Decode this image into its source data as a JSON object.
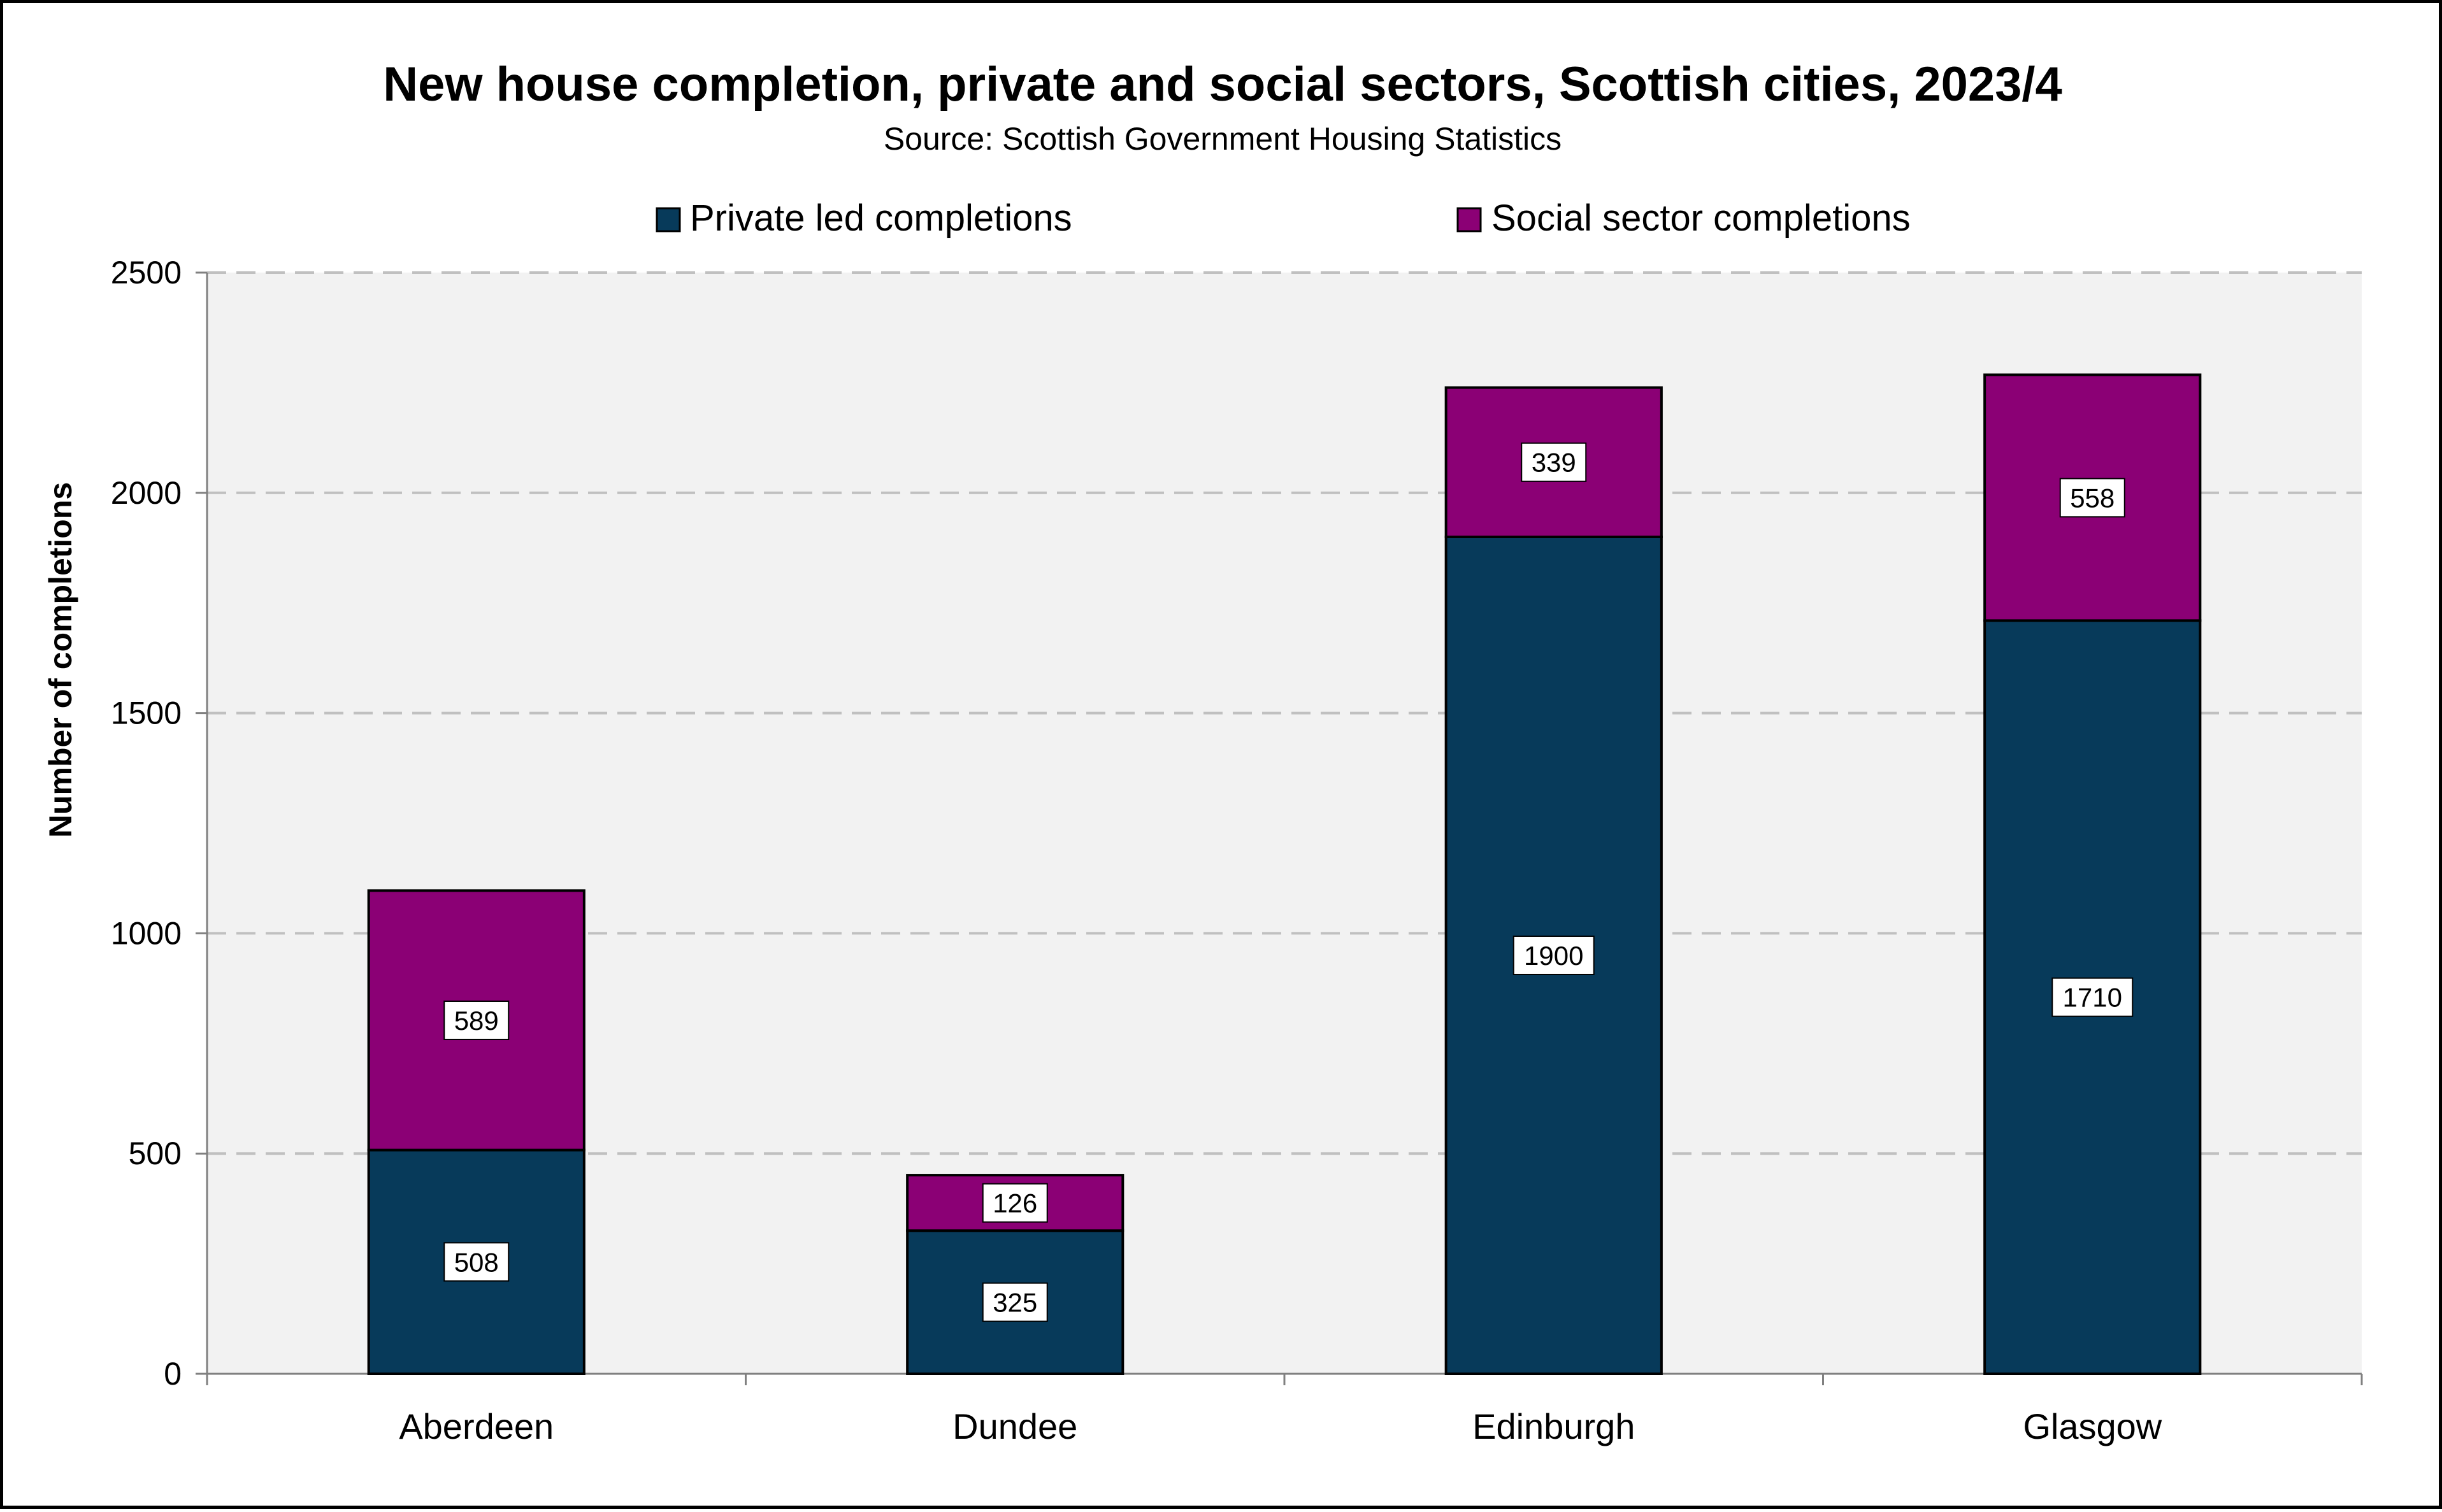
{
  "chart_data": {
    "type": "bar",
    "stacked": true,
    "title": "New house completion, private and social sectors, Scottish cities, 2023/4",
    "subtitle": "Source: Scottish Government Housing Statistics",
    "xlabel": "",
    "ylabel": "Number of completions",
    "ylim": [
      0,
      2500
    ],
    "yticks": [
      0,
      500,
      1000,
      1500,
      2000,
      2500
    ],
    "grid": true,
    "legend_position": "top",
    "categories": [
      "Aberdeen",
      "Dundee",
      "Edinburgh",
      "Glasgow"
    ],
    "series": [
      {
        "name": "Private led completions",
        "color": "#073A5A",
        "values": [
          508,
          325,
          1900,
          1710
        ]
      },
      {
        "name": "Social sector completions",
        "color": "#8B0075",
        "values": [
          589,
          126,
          339,
          558
        ]
      }
    ],
    "plot_background": "#F2F2F2",
    "grid_color": "#C0C0C0"
  }
}
